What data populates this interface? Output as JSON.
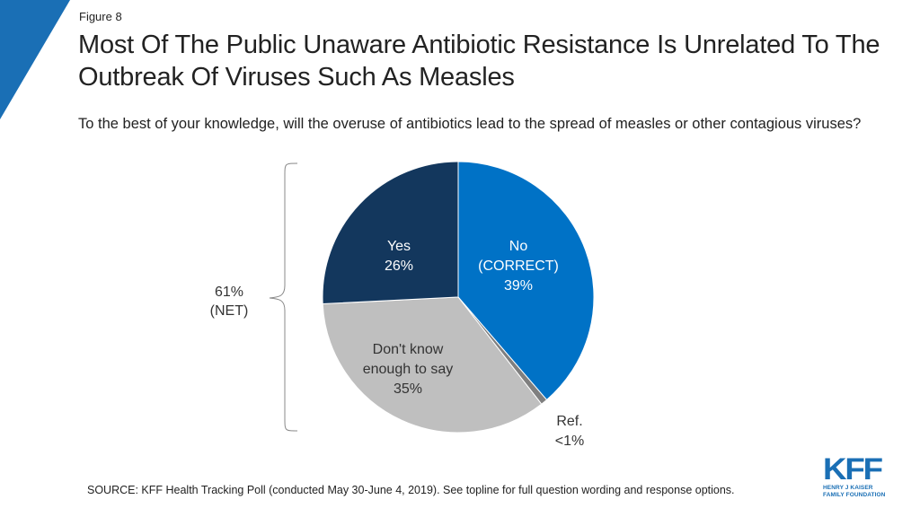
{
  "header": {
    "figure_label": "Figure 8",
    "title": "Most Of The Public Unaware Antibiotic Resistance Is Unrelated To The Outbreak Of Viruses Such As Measles",
    "subtitle": "To the best of your knowledge, will the overuse of antibiotics lead to the spread of measles or other contagious viruses?"
  },
  "chart_data": {
    "type": "pie",
    "slices": [
      {
        "label_lines": [
          "No",
          "(CORRECT)",
          "39%"
        ],
        "value": 39,
        "color": "#0072c6"
      },
      {
        "label_lines": [
          "Ref.",
          "<1%"
        ],
        "value": 0.8,
        "color": "#7f7f7f"
      },
      {
        "label_lines": [
          "Don't know",
          "enough to say",
          "35%"
        ],
        "value": 35,
        "color": "#bfbfbf"
      },
      {
        "label_lines": [
          "Yes",
          "26%"
        ],
        "value": 26,
        "color": "#13375d"
      }
    ],
    "net_bracket": {
      "label_lines": [
        "61%",
        "(NET)"
      ],
      "value": 61
    }
  },
  "footer": {
    "source": "SOURCE: KFF Health Tracking Poll (conducted May 30-June 4, 2019). See topline for full question wording and response options."
  },
  "logo": {
    "main": "KFF",
    "line1": "HENRY J KAISER",
    "line2": "FAMILY FOUNDATION"
  },
  "colors": {
    "accent": "#0072c6",
    "corner": "#1a6fb5"
  }
}
